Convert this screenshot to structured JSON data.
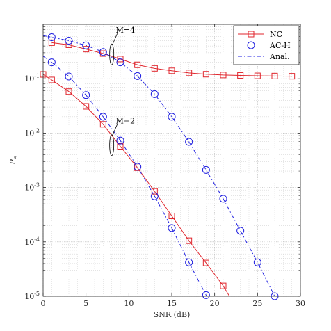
{
  "chart_data": {
    "type": "line",
    "xlabel": "SNR (dB)",
    "ylabel": "P_e",
    "xlim": [
      0,
      30
    ],
    "ylim": [
      1e-05,
      1
    ],
    "yscale": "log",
    "grid": "on",
    "legend": "top-right",
    "x_ticks": [
      "0",
      "5",
      "10",
      "15",
      "20",
      "25",
      "30"
    ],
    "y_ticks": [
      {
        "base": "10",
        "exp": "-5",
        "value": 1e-05
      },
      {
        "base": "10",
        "exp": "-4",
        "value": 0.0001
      },
      {
        "base": "10",
        "exp": "-3",
        "value": 0.001
      },
      {
        "base": "10",
        "exp": "-2",
        "value": 0.01
      },
      {
        "base": "10",
        "exp": "-1",
        "value": 0.1
      }
    ],
    "annotations": [
      {
        "text": "M=4",
        "x": 8,
        "y": 0.28
      },
      {
        "text": "M=2",
        "x": 8,
        "y": 0.006
      }
    ],
    "series": [
      {
        "name": "NC",
        "group": "M=4",
        "color": "#e0262d",
        "marker": "square",
        "line": "solid",
        "x": [
          1,
          3,
          5,
          7,
          9,
          11,
          13,
          15,
          17,
          19,
          21,
          23,
          25,
          27,
          29
        ],
        "y": [
          0.46,
          0.42,
          0.35,
          0.29,
          0.23,
          0.18,
          0.155,
          0.14,
          0.128,
          0.121,
          0.117,
          0.115,
          0.113,
          0.112,
          0.111
        ]
      },
      {
        "name": "AC-H",
        "group": "M=4",
        "color": "#1f1fe0",
        "marker": "circle",
        "line": "none",
        "x": [
          1,
          3,
          5,
          7,
          9,
          11,
          13,
          15,
          17,
          19,
          21,
          23,
          25,
          27
        ],
        "y": [
          0.58,
          0.5,
          0.41,
          0.31,
          0.2,
          0.112,
          0.052,
          0.02,
          0.0069,
          0.0021,
          0.00062,
          0.00016,
          4.2e-05,
          1e-05
        ]
      },
      {
        "name": "Anal.",
        "group": "M=4",
        "color": "#1f1fe0",
        "marker": "none",
        "line": "dashdot",
        "x": [
          0,
          1,
          3,
          5,
          7,
          9,
          11,
          13,
          15,
          17,
          19,
          21,
          23,
          25,
          27,
          27.3
        ],
        "y": [
          0.62,
          0.58,
          0.5,
          0.41,
          0.31,
          0.2,
          0.112,
          0.052,
          0.02,
          0.0069,
          0.0021,
          0.00062,
          0.00016,
          4.2e-05,
          1e-05,
          8.8e-06
        ]
      },
      {
        "name": "NC",
        "group": "M=2",
        "color": "#e0262d",
        "marker": "square",
        "line": "solid",
        "x": [
          0,
          1,
          3,
          5,
          7,
          9,
          11,
          13,
          15,
          17,
          19,
          21,
          22
        ],
        "y": [
          0.12,
          0.095,
          0.058,
          0.031,
          0.0145,
          0.0057,
          0.0023,
          0.00085,
          0.0003,
          0.000105,
          4.1e-05,
          1.55e-05,
          8.5e-06
        ]
      },
      {
        "name": "AC-H",
        "group": "M=2",
        "color": "#1f1fe0",
        "marker": "circle",
        "line": "none",
        "x": [
          1,
          3,
          5,
          7,
          9,
          11,
          13,
          15,
          17,
          19
        ],
        "y": [
          0.2,
          0.11,
          0.05,
          0.02,
          0.0073,
          0.0024,
          0.00069,
          0.00018,
          4.2e-05,
          1.05e-05
        ]
      },
      {
        "name": "Anal.",
        "group": "M=2",
        "color": "#1f1fe0",
        "marker": "none",
        "line": "dashdot",
        "x": [
          0,
          1,
          3,
          5,
          7,
          9,
          11,
          13,
          15,
          17,
          19,
          19.5
        ],
        "y": [
          0.26,
          0.2,
          0.11,
          0.05,
          0.02,
          0.0073,
          0.0024,
          0.00069,
          0.00018,
          4.2e-05,
          1.05e-05,
          8.5e-06
        ]
      }
    ],
    "legend_entries": [
      {
        "label": "NC",
        "color": "#e0262d",
        "marker": "square",
        "line": "solid"
      },
      {
        "label": "AC-H",
        "color": "#1f1fe0",
        "marker": "circle",
        "line": "none"
      },
      {
        "label": "Anal.",
        "color": "#1f1fe0",
        "marker": "none",
        "line": "dashdot"
      }
    ]
  }
}
